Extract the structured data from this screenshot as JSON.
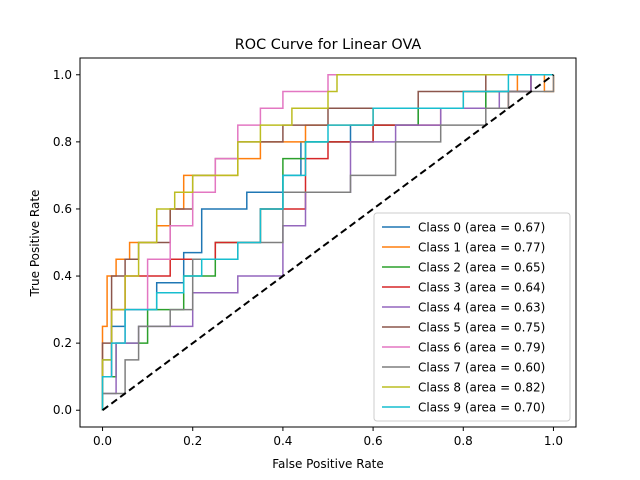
{
  "chart_data": {
    "type": "line",
    "title": "ROC Curve for Linear OVA",
    "xlabel": "False Positive Rate",
    "ylabel": "True Positive Rate",
    "xlim": [
      -0.05,
      1.05
    ],
    "ylim": [
      -0.05,
      1.05
    ],
    "x_ticks": [
      "0.0",
      "0.2",
      "0.4",
      "0.6",
      "0.8",
      "1.0"
    ],
    "y_ticks": [
      "0.0",
      "0.2",
      "0.4",
      "0.6",
      "0.8",
      "1.0"
    ],
    "grid": false,
    "legend_position": "lower-right",
    "diagonal": {
      "points": [
        [
          0,
          0
        ],
        [
          1,
          1
        ]
      ],
      "style": "dashed",
      "color": "#000000"
    },
    "series": [
      {
        "name": "Class 0 (area = 0.67)",
        "color": "#1f77b4",
        "points": [
          [
            0,
            0
          ],
          [
            0,
            0.15
          ],
          [
            0.02,
            0.15
          ],
          [
            0.02,
            0.25
          ],
          [
            0.05,
            0.25
          ],
          [
            0.05,
            0.3
          ],
          [
            0.12,
            0.3
          ],
          [
            0.12,
            0.38
          ],
          [
            0.18,
            0.38
          ],
          [
            0.18,
            0.47
          ],
          [
            0.22,
            0.47
          ],
          [
            0.22,
            0.6
          ],
          [
            0.32,
            0.6
          ],
          [
            0.32,
            0.65
          ],
          [
            0.4,
            0.65
          ],
          [
            0.4,
            0.7
          ],
          [
            0.44,
            0.7
          ],
          [
            0.44,
            0.8
          ],
          [
            0.55,
            0.8
          ],
          [
            0.55,
            0.85
          ],
          [
            0.7,
            0.85
          ],
          [
            0.7,
            0.9
          ],
          [
            0.85,
            0.9
          ],
          [
            0.85,
            0.95
          ],
          [
            0.95,
            0.95
          ],
          [
            0.95,
            1.0
          ],
          [
            1.0,
            1.0
          ]
        ]
      },
      {
        "name": "Class 1 (area = 0.77)",
        "color": "#ff7f0e",
        "points": [
          [
            0,
            0
          ],
          [
            0,
            0.25
          ],
          [
            0.01,
            0.25
          ],
          [
            0.01,
            0.4
          ],
          [
            0.03,
            0.4
          ],
          [
            0.03,
            0.45
          ],
          [
            0.06,
            0.45
          ],
          [
            0.06,
            0.5
          ],
          [
            0.12,
            0.5
          ],
          [
            0.12,
            0.55
          ],
          [
            0.15,
            0.55
          ],
          [
            0.15,
            0.6
          ],
          [
            0.18,
            0.6
          ],
          [
            0.18,
            0.7
          ],
          [
            0.3,
            0.7
          ],
          [
            0.3,
            0.75
          ],
          [
            0.35,
            0.75
          ],
          [
            0.35,
            0.8
          ],
          [
            0.45,
            0.8
          ],
          [
            0.45,
            0.85
          ],
          [
            0.6,
            0.85
          ],
          [
            0.6,
            0.9
          ],
          [
            0.8,
            0.9
          ],
          [
            0.8,
            0.95
          ],
          [
            0.92,
            0.95
          ],
          [
            0.92,
            1.0
          ],
          [
            0.98,
            1.0
          ],
          [
            0.98,
            0.95
          ],
          [
            1.0,
            0.95
          ],
          [
            1.0,
            1.0
          ]
        ]
      },
      {
        "name": "Class 2 (area = 0.65)",
        "color": "#2ca02c",
        "points": [
          [
            0,
            0
          ],
          [
            0,
            0.1
          ],
          [
            0.03,
            0.1
          ],
          [
            0.03,
            0.2
          ],
          [
            0.1,
            0.2
          ],
          [
            0.1,
            0.3
          ],
          [
            0.18,
            0.3
          ],
          [
            0.18,
            0.4
          ],
          [
            0.25,
            0.4
          ],
          [
            0.25,
            0.5
          ],
          [
            0.35,
            0.5
          ],
          [
            0.35,
            0.6
          ],
          [
            0.4,
            0.6
          ],
          [
            0.4,
            0.75
          ],
          [
            0.45,
            0.75
          ],
          [
            0.45,
            0.8
          ],
          [
            0.6,
            0.8
          ],
          [
            0.6,
            0.85
          ],
          [
            0.7,
            0.85
          ],
          [
            0.7,
            0.9
          ],
          [
            0.85,
            0.9
          ],
          [
            0.85,
            0.95
          ],
          [
            0.95,
            0.95
          ],
          [
            0.95,
            1.0
          ],
          [
            1.0,
            1.0
          ]
        ]
      },
      {
        "name": "Class 3 (area = 0.64)",
        "color": "#d62728",
        "points": [
          [
            0,
            0
          ],
          [
            0,
            0.1
          ],
          [
            0.02,
            0.1
          ],
          [
            0.02,
            0.3
          ],
          [
            0.05,
            0.3
          ],
          [
            0.05,
            0.4
          ],
          [
            0.15,
            0.4
          ],
          [
            0.15,
            0.45
          ],
          [
            0.25,
            0.45
          ],
          [
            0.25,
            0.5
          ],
          [
            0.35,
            0.5
          ],
          [
            0.35,
            0.6
          ],
          [
            0.45,
            0.6
          ],
          [
            0.45,
            0.75
          ],
          [
            0.5,
            0.75
          ],
          [
            0.5,
            0.8
          ],
          [
            0.6,
            0.8
          ],
          [
            0.6,
            0.85
          ],
          [
            0.75,
            0.85
          ],
          [
            0.75,
            0.9
          ],
          [
            0.9,
            0.9
          ],
          [
            0.9,
            0.95
          ],
          [
            0.95,
            0.95
          ],
          [
            0.95,
            1.0
          ],
          [
            1.0,
            1.0
          ]
        ]
      },
      {
        "name": "Class 4 (area = 0.63)",
        "color": "#9467bd",
        "points": [
          [
            0,
            0
          ],
          [
            0,
            0.05
          ],
          [
            0.03,
            0.05
          ],
          [
            0.03,
            0.2
          ],
          [
            0.08,
            0.2
          ],
          [
            0.08,
            0.25
          ],
          [
            0.2,
            0.25
          ],
          [
            0.2,
            0.35
          ],
          [
            0.3,
            0.35
          ],
          [
            0.3,
            0.4
          ],
          [
            0.4,
            0.4
          ],
          [
            0.4,
            0.55
          ],
          [
            0.45,
            0.55
          ],
          [
            0.45,
            0.65
          ],
          [
            0.55,
            0.65
          ],
          [
            0.55,
            0.8
          ],
          [
            0.65,
            0.8
          ],
          [
            0.65,
            0.85
          ],
          [
            0.75,
            0.85
          ],
          [
            0.75,
            0.9
          ],
          [
            0.88,
            0.9
          ],
          [
            0.88,
            0.95
          ],
          [
            0.95,
            0.95
          ],
          [
            0.95,
            1.0
          ],
          [
            1.0,
            1.0
          ]
        ]
      },
      {
        "name": "Class 5 (area = 0.75)",
        "color": "#8c564b",
        "points": [
          [
            0,
            0
          ],
          [
            0,
            0.2
          ],
          [
            0.02,
            0.2
          ],
          [
            0.02,
            0.4
          ],
          [
            0.05,
            0.4
          ],
          [
            0.05,
            0.45
          ],
          [
            0.08,
            0.45
          ],
          [
            0.08,
            0.5
          ],
          [
            0.15,
            0.5
          ],
          [
            0.15,
            0.6
          ],
          [
            0.2,
            0.6
          ],
          [
            0.2,
            0.7
          ],
          [
            0.25,
            0.7
          ],
          [
            0.25,
            0.75
          ],
          [
            0.3,
            0.75
          ],
          [
            0.3,
            0.8
          ],
          [
            0.4,
            0.8
          ],
          [
            0.4,
            0.85
          ],
          [
            0.5,
            0.85
          ],
          [
            0.5,
            0.9
          ],
          [
            0.7,
            0.9
          ],
          [
            0.7,
            0.95
          ],
          [
            0.85,
            0.95
          ],
          [
            0.85,
            1.0
          ],
          [
            1.0,
            1.0
          ]
        ]
      },
      {
        "name": "Class 6 (area = 0.79)",
        "color": "#e377c2",
        "points": [
          [
            0,
            0
          ],
          [
            0,
            0.1
          ],
          [
            0.02,
            0.1
          ],
          [
            0.02,
            0.2
          ],
          [
            0.05,
            0.2
          ],
          [
            0.05,
            0.3
          ],
          [
            0.1,
            0.3
          ],
          [
            0.1,
            0.45
          ],
          [
            0.15,
            0.45
          ],
          [
            0.15,
            0.55
          ],
          [
            0.2,
            0.55
          ],
          [
            0.2,
            0.65
          ],
          [
            0.25,
            0.65
          ],
          [
            0.25,
            0.75
          ],
          [
            0.3,
            0.75
          ],
          [
            0.3,
            0.85
          ],
          [
            0.35,
            0.85
          ],
          [
            0.35,
            0.9
          ],
          [
            0.4,
            0.9
          ],
          [
            0.4,
            0.95
          ],
          [
            0.5,
            0.95
          ],
          [
            0.5,
            1.0
          ],
          [
            1.0,
            1.0
          ]
        ]
      },
      {
        "name": "Class 7 (area = 0.60)",
        "color": "#7f7f7f",
        "points": [
          [
            0,
            0
          ],
          [
            0,
            0.05
          ],
          [
            0.05,
            0.05
          ],
          [
            0.05,
            0.15
          ],
          [
            0.08,
            0.15
          ],
          [
            0.08,
            0.25
          ],
          [
            0.15,
            0.25
          ],
          [
            0.15,
            0.3
          ],
          [
            0.2,
            0.3
          ],
          [
            0.2,
            0.45
          ],
          [
            0.3,
            0.45
          ],
          [
            0.3,
            0.5
          ],
          [
            0.4,
            0.5
          ],
          [
            0.4,
            0.65
          ],
          [
            0.55,
            0.65
          ],
          [
            0.55,
            0.7
          ],
          [
            0.65,
            0.7
          ],
          [
            0.65,
            0.8
          ],
          [
            0.75,
            0.8
          ],
          [
            0.75,
            0.85
          ],
          [
            0.85,
            0.85
          ],
          [
            0.85,
            0.9
          ],
          [
            0.9,
            0.9
          ],
          [
            0.9,
            0.95
          ],
          [
            1.0,
            0.95
          ],
          [
            1.0,
            1.0
          ]
        ]
      },
      {
        "name": "Class 8 (area = 0.82)",
        "color": "#bcbd22",
        "points": [
          [
            0,
            0
          ],
          [
            0,
            0.15
          ],
          [
            0.02,
            0.15
          ],
          [
            0.02,
            0.3
          ],
          [
            0.05,
            0.3
          ],
          [
            0.05,
            0.4
          ],
          [
            0.08,
            0.4
          ],
          [
            0.08,
            0.5
          ],
          [
            0.12,
            0.5
          ],
          [
            0.12,
            0.6
          ],
          [
            0.16,
            0.6
          ],
          [
            0.16,
            0.65
          ],
          [
            0.2,
            0.65
          ],
          [
            0.2,
            0.7
          ],
          [
            0.3,
            0.7
          ],
          [
            0.3,
            0.8
          ],
          [
            0.35,
            0.8
          ],
          [
            0.35,
            0.85
          ],
          [
            0.42,
            0.85
          ],
          [
            0.42,
            0.9
          ],
          [
            0.5,
            0.9
          ],
          [
            0.5,
            0.95
          ],
          [
            0.52,
            0.95
          ],
          [
            0.52,
            1.0
          ],
          [
            1.0,
            1.0
          ]
        ]
      },
      {
        "name": "Class 9 (area = 0.70)",
        "color": "#17becf",
        "points": [
          [
            0,
            0
          ],
          [
            0,
            0.1
          ],
          [
            0.02,
            0.1
          ],
          [
            0.02,
            0.2
          ],
          [
            0.05,
            0.2
          ],
          [
            0.05,
            0.3
          ],
          [
            0.12,
            0.3
          ],
          [
            0.12,
            0.35
          ],
          [
            0.18,
            0.35
          ],
          [
            0.18,
            0.4
          ],
          [
            0.22,
            0.4
          ],
          [
            0.22,
            0.45
          ],
          [
            0.3,
            0.45
          ],
          [
            0.3,
            0.5
          ],
          [
            0.35,
            0.5
          ],
          [
            0.35,
            0.6
          ],
          [
            0.4,
            0.6
          ],
          [
            0.4,
            0.7
          ],
          [
            0.45,
            0.7
          ],
          [
            0.45,
            0.8
          ],
          [
            0.5,
            0.8
          ],
          [
            0.5,
            0.85
          ],
          [
            0.6,
            0.85
          ],
          [
            0.6,
            0.9
          ],
          [
            0.8,
            0.9
          ],
          [
            0.8,
            0.95
          ],
          [
            0.9,
            0.95
          ],
          [
            0.9,
            1.0
          ],
          [
            1.0,
            1.0
          ]
        ]
      }
    ]
  }
}
